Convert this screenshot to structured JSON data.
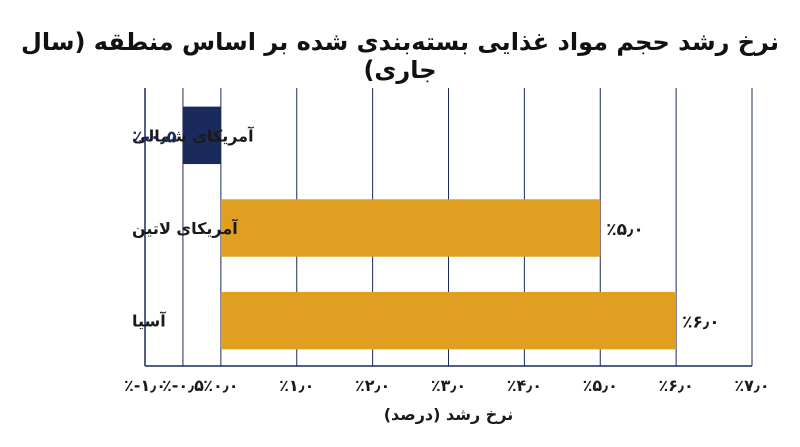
{
  "chart_data": {
    "type": "bar",
    "orientation": "horizontal",
    "title": "نرخ رشد حجم مواد غذایی بسته‌بندی شده بر اساس منطقه (سال جاری)",
    "xlabel": "نرخ رشد (درصد)",
    "ylabel": "",
    "categories": [
      "آمریکای شمالی",
      "آمریکای لاتین",
      "آسیا"
    ],
    "values": [
      -0.5,
      5.0,
      6.0
    ],
    "data_labels": [
      "٪-۰٫۵",
      "٪۵٫۰",
      "٪۶٫۰"
    ],
    "xlim": [
      -1.0,
      7.0
    ],
    "x_ticks": [
      -1.0,
      -0.5,
      0.0,
      1.0,
      2.0,
      3.0,
      4.0,
      5.0,
      6.0,
      7.0
    ],
    "x_tick_labels": [
      "٪-۱٫۰",
      "٪-۰٫۵",
      "٪۰٫۰",
      "٪۱٫۰",
      "٪۲٫۰",
      "٪۳٫۰",
      "٪۴٫۰",
      "٪۵٫۰",
      "٪۶٫۰",
      "٪۷٫۰"
    ],
    "grid": "vertical",
    "colors": {
      "negative": "#1b2a5c",
      "positive": "#e09f20",
      "negative_label": "#1b2a5c",
      "positive_label": "#1a1a1a",
      "grid": "#1b2a5c",
      "axis": "#1b2a5c"
    }
  }
}
